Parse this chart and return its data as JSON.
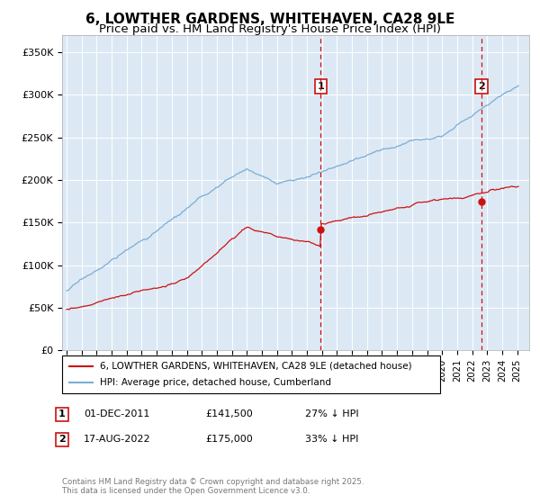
{
  "title": "6, LOWTHER GARDENS, WHITEHAVEN, CA28 9LE",
  "subtitle": "Price paid vs. HM Land Registry's House Price Index (HPI)",
  "ylabel_ticks": [
    "£0",
    "£50K",
    "£100K",
    "£150K",
    "£200K",
    "£250K",
    "£300K",
    "£350K"
  ],
  "ytick_vals": [
    0,
    50000,
    100000,
    150000,
    200000,
    250000,
    300000,
    350000
  ],
  "ylim": [
    0,
    370000
  ],
  "xlim_start": 1994.7,
  "xlim_end": 2025.8,
  "sale1_date": 2011.92,
  "sale1_price": 141500,
  "sale1_label": "1",
  "sale2_date": 2022.63,
  "sale2_price": 175000,
  "sale2_label": "2",
  "hpi_color": "#7aadd4",
  "price_color": "#cc1111",
  "vline_color": "#cc1111",
  "plot_bg": "#dce9f5",
  "legend1": "6, LOWTHER GARDENS, WHITEHAVEN, CA28 9LE (detached house)",
  "legend2": "HPI: Average price, detached house, Cumberland",
  "annotation1_date": "01-DEC-2011",
  "annotation1_price": "£141,500",
  "annotation1_note": "27% ↓ HPI",
  "annotation2_date": "17-AUG-2022",
  "annotation2_price": "£175,000",
  "annotation2_note": "33% ↓ HPI",
  "footer": "Contains HM Land Registry data © Crown copyright and database right 2025.\nThis data is licensed under the Open Government Licence v3.0.",
  "title_fontsize": 11,
  "subtitle_fontsize": 9.5
}
